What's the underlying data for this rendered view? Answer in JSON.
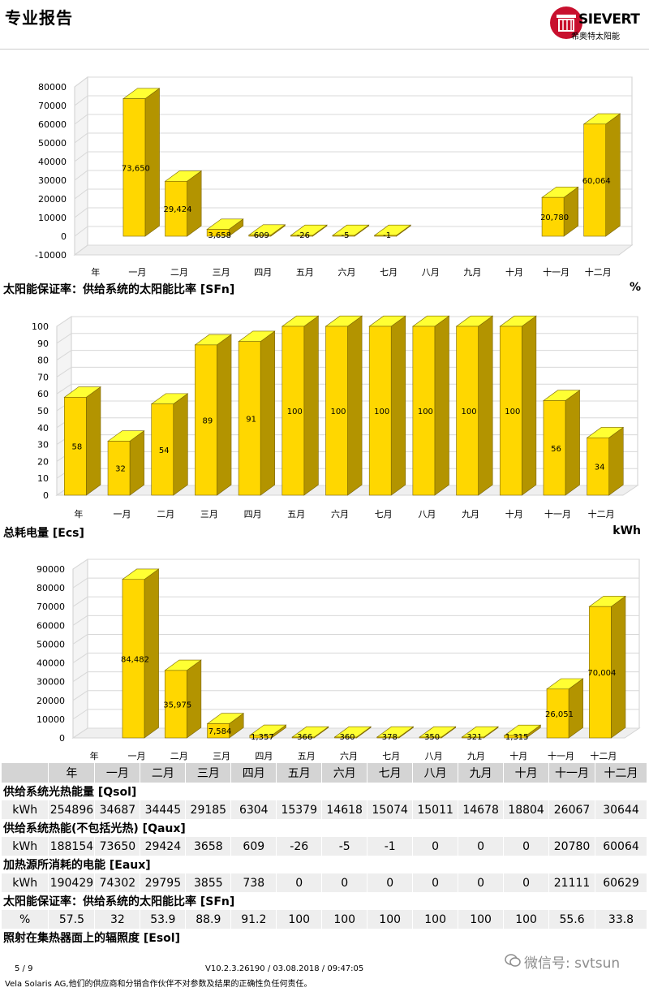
{
  "header": {
    "title": "专业报告",
    "logo_text": "SIEVERT",
    "logo_sub": "希奥特太阳能",
    "brand_color": "#c8102e"
  },
  "months": [
    "年",
    "一月",
    "二月",
    "三月",
    "四月",
    "五月",
    "六月",
    "七月",
    "八月",
    "九月",
    "十月",
    "十一月",
    "十二月"
  ],
  "sections": {
    "sfn_title": "太阳能保证率：供给系统的太阳能比率 [SFn]",
    "sfn_unit": "%",
    "ecs_title": "总耗电量 [Ecs]",
    "ecs_unit": "kWh"
  },
  "chart_data": [
    {
      "type": "bar",
      "categories": [
        "年",
        "一月",
        "二月",
        "三月",
        "四月",
        "五月",
        "六月",
        "七月",
        "八月",
        "九月",
        "十月",
        "十一月",
        "十二月"
      ],
      "values": [
        null,
        73650,
        29424,
        3658,
        609,
        -26,
        -5,
        -1,
        null,
        null,
        null,
        20780,
        60064
      ],
      "data_labels": [
        "",
        "73,650",
        "29,424",
        "3,658",
        "609",
        "-26",
        "-5",
        "-1",
        "",
        "",
        "",
        "20,780",
        "60,064"
      ],
      "yticks": [
        "80000",
        "70000",
        "60000",
        "50000",
        "40000",
        "30000",
        "20000",
        "10000",
        "0",
        "-10000"
      ],
      "ylim": [
        -10000,
        80000
      ],
      "bar_color": "#ffd700"
    },
    {
      "type": "bar",
      "categories": [
        "年",
        "一月",
        "二月",
        "三月",
        "四月",
        "五月",
        "六月",
        "七月",
        "八月",
        "九月",
        "十月",
        "十一月",
        "十二月"
      ],
      "values": [
        58,
        32,
        54,
        89,
        91,
        100,
        100,
        100,
        100,
        100,
        100,
        56,
        34
      ],
      "data_labels": [
        "58",
        "32",
        "54",
        "89",
        "91",
        "100",
        "100",
        "100",
        "100",
        "100",
        "100",
        "56",
        "34"
      ],
      "yticks": [
        "100",
        "90",
        "80",
        "70",
        "60",
        "50",
        "40",
        "30",
        "20",
        "10",
        "0"
      ],
      "ylim": [
        0,
        100
      ],
      "bar_color": "#ffd700"
    },
    {
      "type": "bar",
      "categories": [
        "年",
        "一月",
        "二月",
        "三月",
        "四月",
        "五月",
        "六月",
        "七月",
        "八月",
        "九月",
        "十月",
        "十一月",
        "十二月"
      ],
      "values": [
        null,
        84482,
        35975,
        7584,
        1357,
        366,
        360,
        378,
        350,
        321,
        1315,
        26051,
        70004
      ],
      "data_labels": [
        "",
        "84,482",
        "35,975",
        "7,584",
        "1,357",
        "366",
        "360",
        "378",
        "350",
        "321",
        "1,315",
        "26,051",
        "70,004"
      ],
      "yticks": [
        "90000",
        "80000",
        "70000",
        "60000",
        "50000",
        "40000",
        "30000",
        "20000",
        "10000",
        "0"
      ],
      "ylim": [
        0,
        90000
      ],
      "bar_color": "#ffd700"
    }
  ],
  "table": {
    "header": [
      "年",
      "一月",
      "二月",
      "三月",
      "四月",
      "五月",
      "六月",
      "七月",
      "八月",
      "九月",
      "十月",
      "十一月",
      "十二月"
    ],
    "groups": [
      {
        "title": "供给系统光热能量 [Qsol]",
        "unit": "kWh",
        "values": [
          "254896",
          "34687",
          "34445",
          "29185",
          "6304",
          "15379",
          "14618",
          "15074",
          "15011",
          "14678",
          "18804",
          "26067",
          "30644"
        ]
      },
      {
        "title": "供给系统热能(不包括光热) [Qaux]",
        "unit": "kWh",
        "values": [
          "188154",
          "73650",
          "29424",
          "3658",
          "609",
          "-26",
          "-5",
          "-1",
          "0",
          "0",
          "0",
          "20780",
          "60064"
        ]
      },
      {
        "title": "加热源所消耗的电能 [Eaux]",
        "unit": "kWh",
        "values": [
          "190429",
          "74302",
          "29795",
          "3855",
          "738",
          "0",
          "0",
          "0",
          "0",
          "0",
          "0",
          "21111",
          "60629"
        ]
      },
      {
        "title": "太阳能保证率：供给系统的太阳能比率 [SFn]",
        "unit": "%",
        "values": [
          "57.5",
          "32",
          "53.9",
          "88.9",
          "91.2",
          "100",
          "100",
          "100",
          "100",
          "100",
          "100",
          "55.6",
          "33.8"
        ]
      }
    ],
    "last_title": "照射在集热器面上的辐照度 [Esol]"
  },
  "footer": {
    "page": "5   /   9",
    "version": "V10.2.3.26190 / 03.08.2018 / 09:47:05",
    "copyright": "Vela Solaris AG,他们的供应商和分销合作伙伴不对参数及结果的正确性负任何责任。",
    "watermark": "微信号: svtsun"
  }
}
